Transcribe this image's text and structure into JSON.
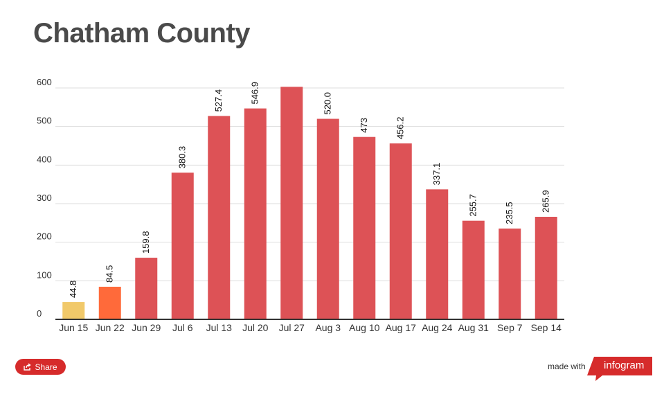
{
  "title": "Chatham County",
  "share_label": "Share",
  "made_with_label": "made with",
  "brand_label": "infogram",
  "colors": {
    "bar_default": "#dd5256",
    "bar_first": "#f1c96a",
    "bar_second": "#ff6a3a",
    "grid": "#dddddd",
    "axis": "#333333",
    "share": "#d62b2b",
    "brand": "#d62b2b"
  },
  "chart_data": {
    "type": "bar",
    "categories": [
      "Jun 15",
      "Jun 22",
      "Jun 29",
      "Jul 6",
      "Jul 13",
      "Jul 20",
      "Jul 27",
      "Aug 3",
      "Aug 10",
      "Aug 17",
      "Aug 24",
      "Aug 31",
      "Sep 7",
      "Sep 14"
    ],
    "values": [
      44.8,
      84.5,
      159.8,
      380.3,
      527.4,
      546.9,
      603,
      520.0,
      473,
      456.2,
      337.1,
      255.7,
      235.5,
      265.9
    ],
    "labels": [
      "44.8",
      "84.5",
      "159.8",
      "380.3",
      "527.4",
      "546.9",
      "",
      "520.0",
      "473",
      "456.2",
      "337.1",
      "255.7",
      "235.5",
      "265.9"
    ],
    "yticks": [
      "0",
      "100",
      "200",
      "300",
      "400",
      "500",
      "600"
    ],
    "ylim": [
      0,
      600
    ],
    "grid": true,
    "legend": "none"
  }
}
